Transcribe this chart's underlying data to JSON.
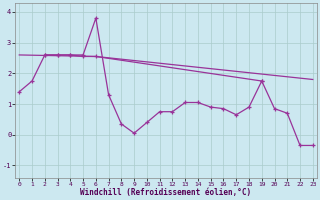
{
  "xlabel": "Windchill (Refroidissement éolien,°C)",
  "background_color": "#cce8f0",
  "grid_color": "#aacccc",
  "line_color": "#993399",
  "x_values": [
    0,
    1,
    2,
    3,
    4,
    5,
    6,
    7,
    8,
    9,
    10,
    11,
    12,
    13,
    14,
    15,
    16,
    17,
    18,
    19,
    20,
    21,
    22,
    23
  ],
  "series1": [
    1.4,
    1.75,
    2.6,
    2.6,
    2.6,
    2.6,
    3.8,
    1.3,
    0.35,
    0.05,
    0.4,
    0.75,
    0.75,
    1.05,
    1.05,
    0.9,
    0.85,
    0.65,
    0.9,
    1.75,
    0.85,
    0.7,
    -0.35,
    -0.35
  ],
  "series2_x": [
    2,
    3,
    4,
    5,
    6,
    19
  ],
  "series2_y": [
    2.6,
    2.6,
    2.6,
    2.55,
    2.55,
    1.75
  ],
  "series3_x": [
    0,
    6,
    23
  ],
  "series3_y": [
    2.6,
    2.55,
    1.8
  ],
  "ylim": [
    -1.4,
    4.3
  ],
  "xlim": [
    -0.3,
    23.3
  ],
  "yticks": [
    -1,
    0,
    1,
    2,
    3,
    4
  ],
  "xticks": [
    0,
    1,
    2,
    3,
    4,
    5,
    6,
    7,
    8,
    9,
    10,
    11,
    12,
    13,
    14,
    15,
    16,
    17,
    18,
    19,
    20,
    21,
    22,
    23
  ]
}
